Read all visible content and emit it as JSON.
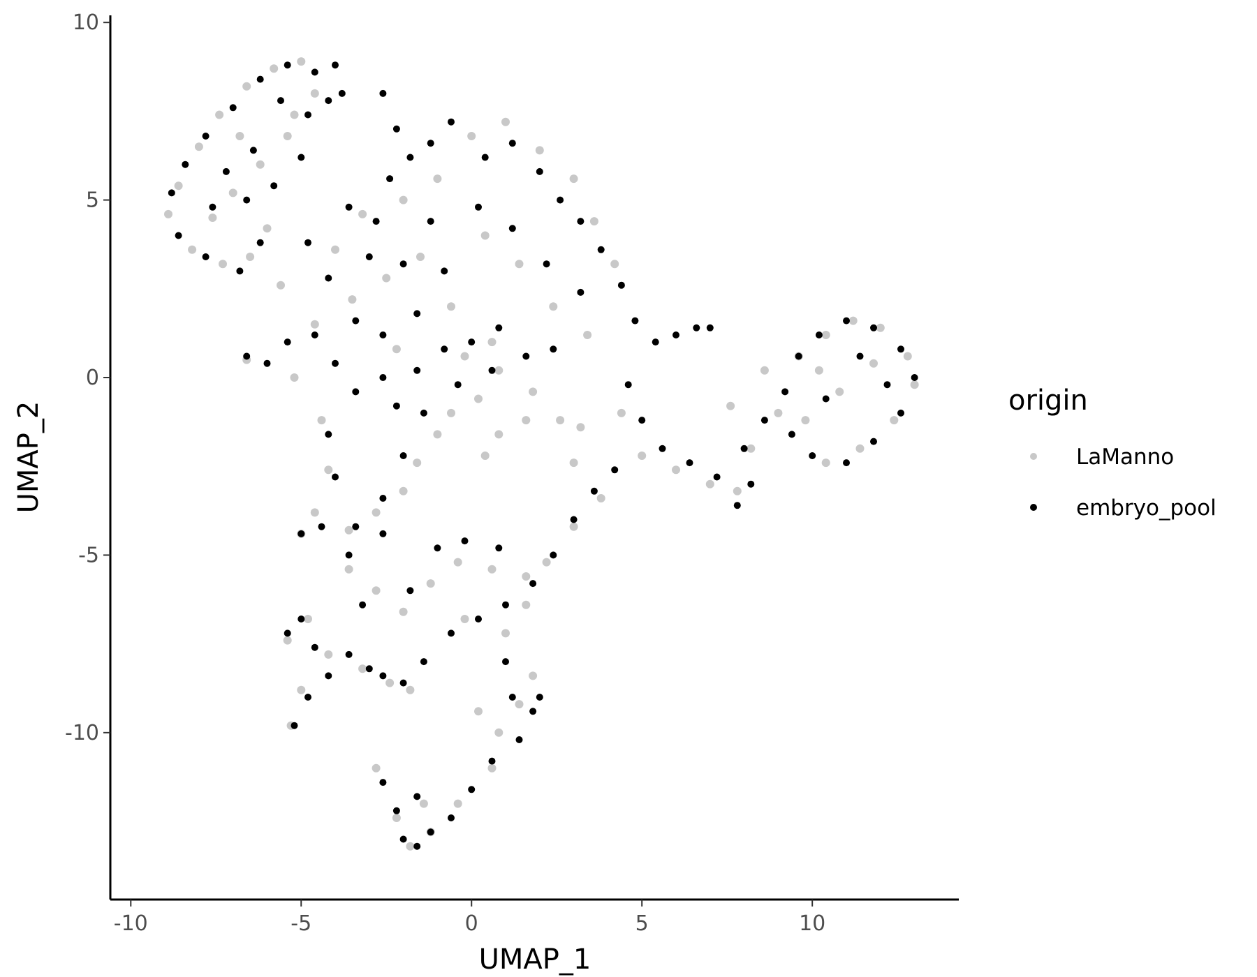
{
  "chart_data": {
    "type": "scatter",
    "xlabel": "UMAP_1",
    "ylabel": "UMAP_2",
    "xlim": [
      -10.6,
      14.3
    ],
    "ylim": [
      -14.7,
      10.2
    ],
    "xticks": [
      -10,
      -5,
      0,
      5,
      10
    ],
    "yticks": [
      10,
      5,
      0,
      -5,
      -10
    ],
    "xtick_labels": [
      "-10",
      "-5",
      "0",
      "5",
      "10"
    ],
    "ytick_labels": [
      "10",
      "5",
      "0",
      "-5",
      "-10"
    ],
    "grid": false,
    "legend": {
      "title": "origin",
      "placement": "right",
      "entries": [
        {
          "label": "LaManno",
          "color": "#c8c8c8"
        },
        {
          "label": "embryo_pool",
          "color": "#000000"
        }
      ]
    },
    "series": [
      {
        "name": "LaManno",
        "color": "#c8c8c8",
        "points": [
          [
            -8.6,
            5.4
          ],
          [
            -8.0,
            6.5
          ],
          [
            -7.4,
            7.4
          ],
          [
            -6.6,
            8.2
          ],
          [
            -5.8,
            8.7
          ],
          [
            -5.0,
            8.9
          ],
          [
            -8.9,
            4.6
          ],
          [
            -8.2,
            3.6
          ],
          [
            -7.3,
            3.2
          ],
          [
            -6.5,
            3.4
          ],
          [
            -6.0,
            4.2
          ],
          [
            -7.0,
            5.2
          ],
          [
            -7.6,
            4.5
          ],
          [
            -6.2,
            6.0
          ],
          [
            -5.4,
            6.8
          ],
          [
            -4.6,
            8.0
          ],
          [
            -5.2,
            7.4
          ],
          [
            -6.8,
            6.8
          ],
          [
            -4.0,
            3.6
          ],
          [
            -3.2,
            4.6
          ],
          [
            -2.0,
            5.0
          ],
          [
            -1.0,
            5.6
          ],
          [
            0.0,
            6.8
          ],
          [
            1.0,
            7.2
          ],
          [
            2.0,
            6.4
          ],
          [
            3.0,
            5.6
          ],
          [
            3.6,
            4.4
          ],
          [
            4.2,
            3.2
          ],
          [
            -3.5,
            2.2
          ],
          [
            -2.5,
            2.8
          ],
          [
            -1.5,
            3.4
          ],
          [
            0.4,
            4.0
          ],
          [
            1.4,
            3.2
          ],
          [
            2.4,
            2.0
          ],
          [
            3.4,
            1.2
          ],
          [
            -0.6,
            2.0
          ],
          [
            0.6,
            1.0
          ],
          [
            -2.2,
            0.8
          ],
          [
            -4.6,
            1.5
          ],
          [
            -5.6,
            2.6
          ],
          [
            -6.6,
            0.5
          ],
          [
            -5.2,
            0.0
          ],
          [
            -4.4,
            -1.2
          ],
          [
            -4.2,
            -2.6
          ],
          [
            -4.6,
            -3.8
          ],
          [
            -5.0,
            -4.4
          ],
          [
            -3.6,
            -4.3
          ],
          [
            -2.8,
            -3.8
          ],
          [
            -2.0,
            -3.2
          ],
          [
            -1.6,
            -2.4
          ],
          [
            -1.0,
            -1.6
          ],
          [
            -0.6,
            -1.0
          ],
          [
            0.2,
            -0.6
          ],
          [
            0.8,
            -1.6
          ],
          [
            1.6,
            -1.2
          ],
          [
            2.6,
            -1.2
          ],
          [
            3.2,
            -1.4
          ],
          [
            -0.2,
            0.6
          ],
          [
            0.8,
            0.2
          ],
          [
            1.8,
            -0.4
          ],
          [
            0.4,
            -2.2
          ],
          [
            -3.6,
            -5.4
          ],
          [
            -2.8,
            -6.0
          ],
          [
            -2.0,
            -6.6
          ],
          [
            -1.2,
            -5.8
          ],
          [
            -0.4,
            -5.2
          ],
          [
            0.6,
            -5.4
          ],
          [
            1.6,
            -5.6
          ],
          [
            -0.2,
            -6.8
          ],
          [
            -5.4,
            -7.4
          ],
          [
            -4.8,
            -6.8
          ],
          [
            -4.2,
            -7.8
          ],
          [
            -5.0,
            -8.8
          ],
          [
            -5.3,
            -9.8
          ],
          [
            -3.2,
            -8.2
          ],
          [
            -2.4,
            -8.6
          ],
          [
            -1.8,
            -8.8
          ],
          [
            0.2,
            -9.4
          ],
          [
            0.8,
            -10.0
          ],
          [
            1.4,
            -9.2
          ],
          [
            1.8,
            -8.4
          ],
          [
            0.6,
            -11.0
          ],
          [
            -0.4,
            -12.0
          ],
          [
            -1.2,
            -12.8
          ],
          [
            -1.8,
            -13.2
          ],
          [
            -2.2,
            -12.4
          ],
          [
            -2.8,
            -11.0
          ],
          [
            -1.4,
            -12.0
          ],
          [
            4.4,
            -1.0
          ],
          [
            5.0,
            -2.2
          ],
          [
            6.0,
            -2.6
          ],
          [
            7.0,
            -3.0
          ],
          [
            7.8,
            -3.2
          ],
          [
            8.2,
            -2.0
          ],
          [
            7.6,
            -0.8
          ],
          [
            8.6,
            0.2
          ],
          [
            9.0,
            -1.0
          ],
          [
            9.6,
            0.6
          ],
          [
            10.4,
            1.2
          ],
          [
            11.2,
            1.6
          ],
          [
            12.0,
            1.4
          ],
          [
            12.8,
            0.6
          ],
          [
            13.0,
            -0.2
          ],
          [
            12.4,
            -1.2
          ],
          [
            11.4,
            -2.0
          ],
          [
            10.4,
            -2.4
          ],
          [
            9.8,
            -1.2
          ],
          [
            10.8,
            -0.4
          ],
          [
            11.8,
            0.4
          ],
          [
            10.2,
            0.2
          ],
          [
            3.8,
            -3.4
          ],
          [
            3.0,
            -4.2
          ],
          [
            2.2,
            -5.2
          ],
          [
            1.6,
            -6.4
          ],
          [
            1.0,
            -7.2
          ],
          [
            3.0,
            -2.4
          ]
        ]
      },
      {
        "name": "embryo_pool",
        "color": "#000000",
        "points": [
          [
            -8.8,
            5.2
          ],
          [
            -8.4,
            6.0
          ],
          [
            -7.8,
            6.8
          ],
          [
            -7.0,
            7.6
          ],
          [
            -6.2,
            8.4
          ],
          [
            -5.4,
            8.8
          ],
          [
            -4.6,
            8.6
          ],
          [
            -4.0,
            8.8
          ],
          [
            -8.6,
            4.0
          ],
          [
            -7.8,
            3.4
          ],
          [
            -6.8,
            3.0
          ],
          [
            -6.2,
            3.8
          ],
          [
            -7.2,
            5.8
          ],
          [
            -6.4,
            6.4
          ],
          [
            -5.8,
            5.4
          ],
          [
            -5.0,
            6.2
          ],
          [
            -4.8,
            7.4
          ],
          [
            -5.6,
            7.8
          ],
          [
            -6.6,
            5.0
          ],
          [
            -7.6,
            4.8
          ],
          [
            -4.2,
            7.8
          ],
          [
            -3.8,
            8.0
          ],
          [
            -3.6,
            4.8
          ],
          [
            -2.8,
            4.4
          ],
          [
            -2.4,
            5.6
          ],
          [
            -1.8,
            6.2
          ],
          [
            -1.2,
            6.6
          ],
          [
            -0.6,
            7.2
          ],
          [
            0.4,
            6.2
          ],
          [
            1.2,
            6.6
          ],
          [
            2.0,
            5.8
          ],
          [
            2.6,
            5.0
          ],
          [
            3.2,
            4.4
          ],
          [
            3.8,
            3.6
          ],
          [
            4.4,
            2.6
          ],
          [
            4.8,
            1.6
          ],
          [
            -2.6,
            8.0
          ],
          [
            -2.2,
            7.0
          ],
          [
            -3.0,
            3.4
          ],
          [
            -2.0,
            3.2
          ],
          [
            -1.2,
            4.4
          ],
          [
            0.2,
            4.8
          ],
          [
            1.2,
            4.2
          ],
          [
            2.2,
            3.2
          ],
          [
            3.2,
            2.4
          ],
          [
            -0.8,
            3.0
          ],
          [
            -4.2,
            2.8
          ],
          [
            -4.8,
            3.8
          ],
          [
            -3.4,
            1.6
          ],
          [
            -2.6,
            1.2
          ],
          [
            -1.6,
            1.8
          ],
          [
            -6.6,
            0.6
          ],
          [
            -6.0,
            0.4
          ],
          [
            -5.4,
            1.0
          ],
          [
            -4.6,
            1.2
          ],
          [
            -4.0,
            0.4
          ],
          [
            -3.4,
            -0.4
          ],
          [
            -2.6,
            0.0
          ],
          [
            -1.6,
            0.2
          ],
          [
            -0.8,
            0.8
          ],
          [
            0.0,
            1.0
          ],
          [
            0.8,
            1.4
          ],
          [
            -4.2,
            -1.6
          ],
          [
            -4.0,
            -2.8
          ],
          [
            -4.4,
            -4.2
          ],
          [
            -5.0,
            -4.4
          ],
          [
            -3.4,
            -4.2
          ],
          [
            -2.6,
            -3.4
          ],
          [
            -2.0,
            -2.2
          ],
          [
            -1.4,
            -1.0
          ],
          [
            -2.2,
            -0.8
          ],
          [
            -0.4,
            -0.2
          ],
          [
            0.6,
            0.2
          ],
          [
            1.6,
            0.6
          ],
          [
            2.4,
            0.8
          ],
          [
            5.4,
            1.0
          ],
          [
            6.0,
            1.2
          ],
          [
            6.6,
            1.4
          ],
          [
            7.0,
            1.4
          ],
          [
            4.6,
            -0.2
          ],
          [
            5.0,
            -1.2
          ],
          [
            5.6,
            -2.0
          ],
          [
            6.4,
            -2.4
          ],
          [
            7.2,
            -2.8
          ],
          [
            7.8,
            -3.6
          ],
          [
            8.2,
            -3.0
          ],
          [
            8.0,
            -2.0
          ],
          [
            8.6,
            -1.2
          ],
          [
            9.2,
            -0.4
          ],
          [
            9.6,
            0.6
          ],
          [
            10.2,
            1.2
          ],
          [
            11.0,
            1.6
          ],
          [
            11.8,
            1.4
          ],
          [
            12.6,
            0.8
          ],
          [
            13.0,
            0.0
          ],
          [
            12.6,
            -1.0
          ],
          [
            11.8,
            -1.8
          ],
          [
            11.0,
            -2.4
          ],
          [
            10.0,
            -2.2
          ],
          [
            9.4,
            -1.6
          ],
          [
            10.4,
            -0.6
          ],
          [
            11.4,
            0.6
          ],
          [
            12.2,
            -0.2
          ],
          [
            4.2,
            -2.6
          ],
          [
            3.6,
            -3.2
          ],
          [
            3.0,
            -4.0
          ],
          [
            2.4,
            -5.0
          ],
          [
            1.8,
            -5.8
          ],
          [
            1.0,
            -6.4
          ],
          [
            0.2,
            -6.8
          ],
          [
            -0.6,
            -7.2
          ],
          [
            -1.4,
            -8.0
          ],
          [
            -2.0,
            -8.6
          ],
          [
            -1.8,
            -6.0
          ],
          [
            -1.0,
            -4.8
          ],
          [
            -0.2,
            -4.6
          ],
          [
            0.8,
            -4.8
          ],
          [
            -2.6,
            -4.4
          ],
          [
            -3.6,
            -5.0
          ],
          [
            -5.4,
            -7.2
          ],
          [
            -5.0,
            -6.8
          ],
          [
            -4.6,
            -7.6
          ],
          [
            -4.2,
            -8.4
          ],
          [
            -4.8,
            -9.0
          ],
          [
            -5.2,
            -9.8
          ],
          [
            -3.6,
            -7.8
          ],
          [
            -3.0,
            -8.2
          ],
          [
            -2.6,
            -8.4
          ],
          [
            -3.2,
            -6.4
          ],
          [
            1.0,
            -8.0
          ],
          [
            1.2,
            -9.0
          ],
          [
            1.8,
            -9.4
          ],
          [
            2.0,
            -9.0
          ],
          [
            1.4,
            -10.2
          ],
          [
            0.6,
            -10.8
          ],
          [
            0.0,
            -11.6
          ],
          [
            -0.6,
            -12.4
          ],
          [
            -1.2,
            -12.8
          ],
          [
            -1.6,
            -13.2
          ],
          [
            -2.0,
            -13.0
          ],
          [
            -2.2,
            -12.2
          ],
          [
            -2.6,
            -11.4
          ],
          [
            -1.6,
            -11.8
          ]
        ]
      }
    ]
  }
}
